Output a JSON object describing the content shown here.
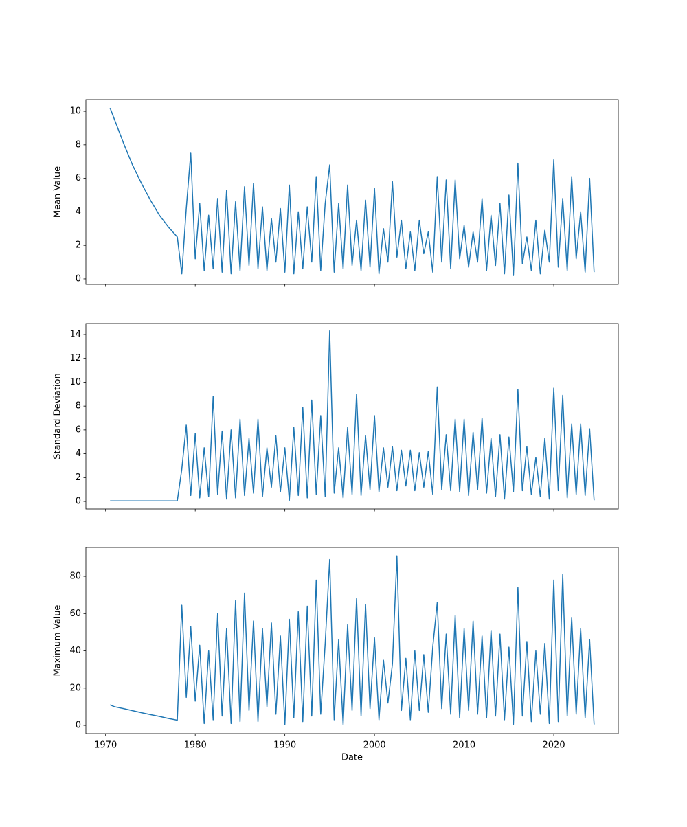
{
  "chart_data": [
    {
      "type": "line",
      "ylabel": "Mean Value",
      "color": "#1f77b4",
      "x": [
        1970.5,
        1971,
        1972,
        1973,
        1974,
        1975,
        1976,
        1977,
        1978,
        1978.5,
        1979,
        1979.5,
        1980,
        1980.5,
        1981,
        1981.5,
        1982,
        1982.5,
        1983,
        1983.5,
        1984,
        1984.5,
        1985,
        1985.5,
        1986,
        1986.5,
        1987,
        1987.5,
        1988,
        1988.5,
        1989,
        1989.5,
        1990,
        1990.5,
        1991,
        1991.5,
        1992,
        1992.5,
        1993,
        1993.5,
        1994,
        1994.5,
        1995,
        1995.5,
        1996,
        1996.5,
        1997,
        1997.5,
        1998,
        1998.5,
        1999,
        1999.5,
        2000,
        2000.5,
        2001,
        2001.5,
        2002,
        2002.5,
        2003,
        2003.5,
        2004,
        2004.5,
        2005,
        2005.5,
        2006,
        2006.5,
        2007,
        2007.5,
        2008,
        2008.5,
        2009,
        2009.5,
        2010,
        2010.5,
        2011,
        2011.5,
        2012,
        2012.5,
        2013,
        2013.5,
        2014,
        2014.5,
        2015,
        2015.5,
        2016,
        2016.5,
        2017,
        2017.5,
        2018,
        2018.5,
        2019,
        2019.5,
        2020,
        2020.5,
        2021,
        2021.5,
        2022,
        2022.5,
        2023,
        2023.5,
        2024,
        2024.5
      ],
      "values": [
        10.2,
        9.5,
        8.1,
        6.8,
        5.7,
        4.7,
        3.8,
        3.1,
        2.5,
        0.3,
        4.2,
        7.5,
        1.2,
        4.5,
        0.5,
        3.8,
        0.6,
        4.8,
        0.4,
        5.3,
        0.3,
        4.6,
        0.5,
        5.5,
        0.8,
        5.7,
        0.6,
        4.3,
        0.5,
        3.6,
        1.0,
        4.2,
        0.4,
        5.6,
        0.3,
        4.0,
        0.6,
        4.3,
        1.0,
        6.1,
        0.5,
        4.5,
        6.8,
        0.4,
        4.5,
        0.6,
        5.6,
        0.8,
        3.5,
        0.5,
        4.7,
        0.7,
        5.4,
        0.3,
        3.0,
        1.0,
        5.8,
        1.3,
        3.5,
        0.6,
        2.8,
        0.5,
        3.5,
        1.5,
        2.8,
        0.4,
        6.1,
        1.0,
        5.9,
        0.6,
        5.9,
        1.2,
        3.2,
        0.7,
        2.8,
        1.0,
        4.8,
        0.5,
        3.8,
        0.8,
        4.5,
        0.3,
        5.0,
        0.2,
        6.9,
        0.9,
        2.5,
        0.5,
        3.5,
        0.3,
        2.9,
        1.0,
        7.1,
        0.7,
        4.8,
        0.5,
        6.1,
        1.2,
        4.0,
        0.4,
        6.0,
        0.4
      ],
      "xlim": [
        1967.8,
        2027.2
      ],
      "xticks": [
        1970,
        1980,
        1990,
        2000,
        2010,
        2020
      ],
      "ylim": [
        -0.33,
        10.7
      ],
      "yticks": [
        0,
        2,
        4,
        6,
        8,
        10
      ]
    },
    {
      "type": "line",
      "ylabel": "Standard Deviation",
      "color": "#1f77b4",
      "x": [
        1970.5,
        1971,
        1972,
        1973,
        1974,
        1975,
        1976,
        1977,
        1978,
        1978.5,
        1979,
        1979.5,
        1980,
        1980.5,
        1981,
        1981.5,
        1982,
        1982.5,
        1983,
        1983.5,
        1984,
        1984.5,
        1985,
        1985.5,
        1986,
        1986.5,
        1987,
        1987.5,
        1988,
        1988.5,
        1989,
        1989.5,
        1990,
        1990.5,
        1991,
        1991.5,
        1992,
        1992.5,
        1993,
        1993.5,
        1994,
        1994.5,
        1995,
        1995.5,
        1996,
        1996.5,
        1997,
        1997.5,
        1998,
        1998.5,
        1999,
        1999.5,
        2000,
        2000.5,
        2001,
        2001.5,
        2002,
        2002.5,
        2003,
        2003.5,
        2004,
        2004.5,
        2005,
        2005.5,
        2006,
        2006.5,
        2007,
        2007.5,
        2008,
        2008.5,
        2009,
        2009.5,
        2010,
        2010.5,
        2011,
        2011.5,
        2012,
        2012.5,
        2013,
        2013.5,
        2014,
        2014.5,
        2015,
        2015.5,
        2016,
        2016.5,
        2017,
        2017.5,
        2018,
        2018.5,
        2019,
        2019.5,
        2020,
        2020.5,
        2021,
        2021.5,
        2022,
        2022.5,
        2023,
        2023.5,
        2024,
        2024.5
      ],
      "values": [
        0.05,
        0.05,
        0.05,
        0.05,
        0.05,
        0.05,
        0.05,
        0.05,
        0.05,
        2.7,
        6.4,
        0.5,
        5.7,
        0.3,
        4.5,
        0.4,
        8.8,
        0.6,
        5.9,
        0.2,
        6.0,
        0.3,
        6.9,
        0.5,
        5.3,
        0.7,
        6.9,
        0.4,
        4.5,
        1.2,
        5.5,
        0.8,
        4.5,
        0.1,
        6.2,
        0.5,
        7.9,
        0.3,
        8.5,
        0.6,
        7.2,
        0.4,
        14.3,
        0.7,
        4.5,
        0.3,
        6.2,
        0.6,
        9.0,
        0.5,
        5.5,
        1.0,
        7.2,
        0.8,
        4.5,
        1.2,
        4.6,
        0.9,
        4.3,
        1.3,
        4.3,
        0.9,
        4.1,
        1.2,
        4.2,
        0.6,
        9.6,
        1.0,
        5.6,
        0.9,
        6.9,
        0.8,
        6.9,
        0.5,
        5.8,
        1.0,
        7.0,
        0.7,
        5.3,
        0.4,
        5.6,
        0.2,
        5.4,
        0.8,
        9.4,
        0.9,
        4.6,
        0.6,
        3.7,
        0.4,
        5.3,
        0.2,
        9.5,
        0.9,
        8.9,
        0.3,
        6.5,
        0.6,
        6.5,
        0.5,
        6.1,
        0.1
      ],
      "xlim": [
        1967.8,
        2027.2
      ],
      "xticks": [
        1970,
        1980,
        1990,
        2000,
        2010,
        2020
      ],
      "ylim": [
        -0.63,
        14.92
      ],
      "yticks": [
        0,
        2,
        4,
        6,
        8,
        10,
        12,
        14
      ]
    },
    {
      "type": "line",
      "ylabel": "Maximum Value",
      "xlabel": "Date",
      "color": "#1f77b4",
      "x": [
        1970.5,
        1971,
        1972,
        1973,
        1974,
        1975,
        1976,
        1977,
        1978,
        1978.5,
        1979,
        1979.5,
        1980,
        1980.5,
        1981,
        1981.5,
        1982,
        1982.5,
        1983,
        1983.5,
        1984,
        1984.5,
        1985,
        1985.5,
        1986,
        1986.5,
        1987,
        1987.5,
        1988,
        1988.5,
        1989,
        1989.5,
        1990,
        1990.5,
        1991,
        1991.5,
        1992,
        1992.5,
        1993,
        1993.5,
        1994,
        1994.5,
        1995,
        1995.5,
        1996,
        1996.5,
        1997,
        1997.5,
        1998,
        1998.5,
        1999,
        1999.5,
        2000,
        2000.5,
        2001,
        2001.5,
        2002,
        2002.5,
        2003,
        2003.5,
        2004,
        2004.5,
        2005,
        2005.5,
        2006,
        2006.5,
        2007,
        2007.5,
        2008,
        2008.5,
        2009,
        2009.5,
        2010,
        2010.5,
        2011,
        2011.5,
        2012,
        2012.5,
        2013,
        2013.5,
        2014,
        2014.5,
        2015,
        2015.5,
        2016,
        2016.5,
        2017,
        2017.5,
        2018,
        2018.5,
        2019,
        2019.5,
        2020,
        2020.5,
        2021,
        2021.5,
        2022,
        2022.5,
        2023,
        2023.5,
        2024,
        2024.5
      ],
      "values": [
        11,
        10.0,
        9.0,
        7.9,
        6.8,
        5.8,
        4.8,
        3.7,
        2.8,
        64.5,
        15,
        53,
        13,
        43,
        1,
        40,
        3,
        60,
        5,
        52,
        1,
        67,
        2,
        71,
        8,
        56,
        2,
        52,
        10,
        55,
        6,
        48,
        0.5,
        57,
        4,
        61,
        2,
        64,
        5,
        78,
        6,
        44,
        89,
        3,
        46,
        0.5,
        54,
        8,
        68,
        5,
        65,
        9,
        47,
        3,
        35,
        12,
        33,
        91,
        8,
        36,
        3,
        40,
        8,
        38,
        7,
        42,
        66,
        9,
        49,
        6,
        59,
        4,
        52,
        8,
        56,
        6,
        48,
        4,
        51,
        5,
        49,
        3,
        42,
        0.5,
        74,
        5,
        45,
        2,
        40,
        6,
        44,
        1,
        78,
        2,
        81,
        5,
        58,
        6,
        52,
        4,
        46,
        0.5
      ],
      "xlim": [
        1967.8,
        2027.2
      ],
      "xticks": [
        1970,
        1980,
        1990,
        2000,
        2010,
        2020
      ],
      "ylim": [
        -4.4,
        95.5
      ],
      "yticks": [
        0,
        20,
        40,
        60,
        80
      ]
    }
  ]
}
